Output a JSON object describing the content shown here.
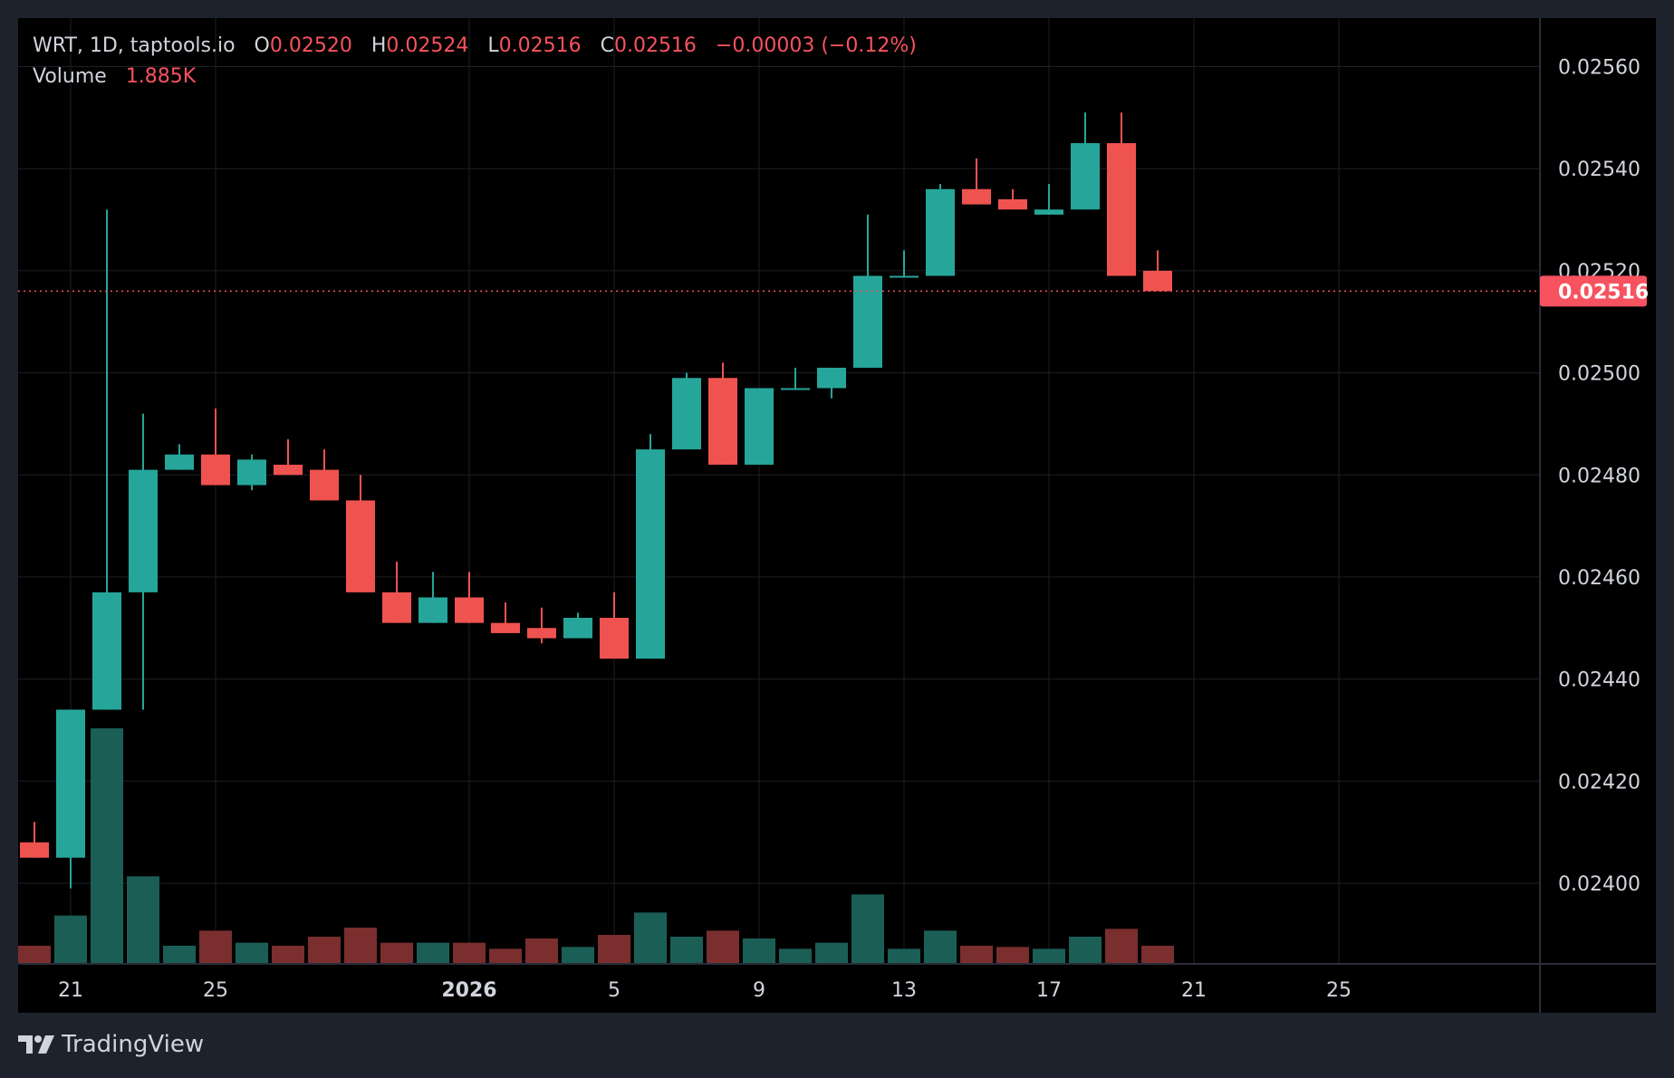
{
  "legend": {
    "symbol": "WRT, 1D, taptools.io",
    "o_label": "O",
    "o_value": "0.02520",
    "h_label": "H",
    "h_value": "0.02524",
    "l_label": "L",
    "l_value": "0.02516",
    "c_label": "C",
    "c_value": "0.02516",
    "change": "−0.00003 (−0.12%)",
    "volume_label": "Volume",
    "volume_value": "1.885K"
  },
  "brand": {
    "name": "TradingView"
  },
  "colors": {
    "background": "#000000",
    "frame": "#1e222d",
    "up": "#26a69a",
    "down": "#ef5350",
    "up_volume": "#1b5e55",
    "down_volume": "#7a2e2e",
    "grid": "#1c1f26",
    "text": "#d1d4dc",
    "last_price": "#f7525f"
  },
  "chart_data": {
    "type": "candlestick",
    "symbol": "WRT",
    "interval": "1D",
    "source": "taptools.io",
    "y_ticks": [
      "0.02560",
      "0.02540",
      "0.02520",
      "0.02500",
      "0.02480",
      "0.02460",
      "0.02440",
      "0.02420",
      "0.02400"
    ],
    "ylim": [
      0.023842,
      0.025695
    ],
    "x_ticks": [
      {
        "label": "21",
        "index": 1,
        "bold": false
      },
      {
        "label": "25",
        "index": 5,
        "bold": false
      },
      {
        "label": "2026",
        "index": 12,
        "bold": true
      },
      {
        "label": "5",
        "index": 16,
        "bold": false
      },
      {
        "label": "9",
        "index": 20,
        "bold": false
      },
      {
        "label": "13",
        "index": 24,
        "bold": false
      },
      {
        "label": "17",
        "index": 28,
        "bold": false
      },
      {
        "label": "21",
        "index": 32,
        "bold": false
      },
      {
        "label": "25",
        "index": 36,
        "bold": false
      }
    ],
    "last_price": "0.02516",
    "candles": [
      {
        "o": 0.02408,
        "h": 0.02412,
        "l": 0.02405,
        "c": 0.02405,
        "v": 30
      },
      {
        "o": 0.02405,
        "h": 0.02434,
        "l": 0.02399,
        "c": 0.02434,
        "v": 80
      },
      {
        "o": 0.02434,
        "h": 0.02532,
        "l": 0.02434,
        "c": 0.02457,
        "v": 390
      },
      {
        "o": 0.02457,
        "h": 0.02492,
        "l": 0.02434,
        "c": 0.02481,
        "v": 145
      },
      {
        "o": 0.02481,
        "h": 0.02486,
        "l": 0.02481,
        "c": 0.02484,
        "v": 30
      },
      {
        "o": 0.02484,
        "h": 0.02493,
        "l": 0.02478,
        "c": 0.02478,
        "v": 55
      },
      {
        "o": 0.02478,
        "h": 0.02484,
        "l": 0.02477,
        "c": 0.02483,
        "v": 35
      },
      {
        "o": 0.02482,
        "h": 0.02487,
        "l": 0.0248,
        "c": 0.0248,
        "v": 30
      },
      {
        "o": 0.02481,
        "h": 0.02485,
        "l": 0.02475,
        "c": 0.02475,
        "v": 45
      },
      {
        "o": 0.02475,
        "h": 0.0248,
        "l": 0.02457,
        "c": 0.02457,
        "v": 60
      },
      {
        "o": 0.02457,
        "h": 0.02463,
        "l": 0.02451,
        "c": 0.02451,
        "v": 35
      },
      {
        "o": 0.02451,
        "h": 0.02461,
        "l": 0.02451,
        "c": 0.02456,
        "v": 35
      },
      {
        "o": 0.02456,
        "h": 0.02461,
        "l": 0.02451,
        "c": 0.02451,
        "v": 35
      },
      {
        "o": 0.02451,
        "h": 0.02455,
        "l": 0.02449,
        "c": 0.02449,
        "v": 25
      },
      {
        "o": 0.0245,
        "h": 0.02454,
        "l": 0.02447,
        "c": 0.02448,
        "v": 42
      },
      {
        "o": 0.02448,
        "h": 0.02453,
        "l": 0.02448,
        "c": 0.02452,
        "v": 28
      },
      {
        "o": 0.02452,
        "h": 0.02457,
        "l": 0.02444,
        "c": 0.02444,
        "v": 48
      },
      {
        "o": 0.02444,
        "h": 0.02488,
        "l": 0.02444,
        "c": 0.02485,
        "v": 85
      },
      {
        "o": 0.02485,
        "h": 0.025,
        "l": 0.02485,
        "c": 0.02499,
        "v": 45
      },
      {
        "o": 0.02499,
        "h": 0.02502,
        "l": 0.02482,
        "c": 0.02482,
        "v": 55
      },
      {
        "o": 0.02482,
        "h": 0.02497,
        "l": 0.02482,
        "c": 0.02497,
        "v": 42
      },
      {
        "o": 0.02497,
        "h": 0.02501,
        "l": 0.02497,
        "c": 0.02497,
        "v": 25
      },
      {
        "o": 0.02497,
        "h": 0.02501,
        "l": 0.02495,
        "c": 0.02501,
        "v": 35
      },
      {
        "o": 0.02501,
        "h": 0.02531,
        "l": 0.02501,
        "c": 0.02519,
        "v": 115
      },
      {
        "o": 0.02519,
        "h": 0.02524,
        "l": 0.02519,
        "c": 0.02519,
        "v": 25
      },
      {
        "o": 0.02519,
        "h": 0.02537,
        "l": 0.02519,
        "c": 0.02536,
        "v": 55
      },
      {
        "o": 0.02536,
        "h": 0.02542,
        "l": 0.02533,
        "c": 0.02533,
        "v": 30
      },
      {
        "o": 0.02534,
        "h": 0.02536,
        "l": 0.02532,
        "c": 0.02532,
        "v": 28
      },
      {
        "o": 0.02531,
        "h": 0.02537,
        "l": 0.02531,
        "c": 0.02532,
        "v": 25
      },
      {
        "o": 0.02532,
        "h": 0.02551,
        "l": 0.02532,
        "c": 0.02545,
        "v": 45
      },
      {
        "o": 0.02545,
        "h": 0.02551,
        "l": 0.02519,
        "c": 0.02519,
        "v": 58
      },
      {
        "o": 0.0252,
        "h": 0.02524,
        "l": 0.02516,
        "c": 0.02516,
        "v": 30
      }
    ]
  }
}
